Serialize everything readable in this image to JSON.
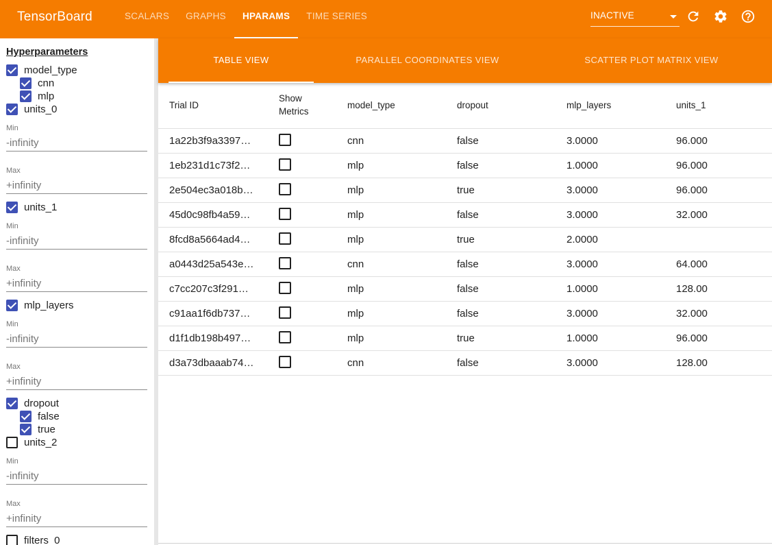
{
  "app": {
    "title": "TensorBoard",
    "nav_tabs": [
      {
        "label": "SCALARS"
      },
      {
        "label": "GRAPHS"
      },
      {
        "label": "HPARAMS"
      },
      {
        "label": "TIME SERIES"
      }
    ],
    "active_tab": "HPARAMS",
    "status_select": "INACTIVE",
    "icons": [
      "refresh-icon",
      "settings-icon",
      "help-icon"
    ],
    "accent_color": "#f57c00",
    "checkbox_color": "#3f51b5"
  },
  "sidebar": {
    "title": "Hyperparameters",
    "model_type": {
      "label": "model_type",
      "checked": true,
      "options": [
        {
          "label": "cnn",
          "checked": true
        },
        {
          "label": "mlp",
          "checked": true
        }
      ]
    },
    "units_0": {
      "label": "units_0",
      "checked": true,
      "min_label": "Min",
      "min_value": "-infinity",
      "max_label": "Max",
      "max_value": "+infinity"
    },
    "units_1": {
      "label": "units_1",
      "checked": true,
      "min_label": "Min",
      "min_value": "-infinity",
      "max_label": "Max",
      "max_value": "+infinity"
    },
    "mlp_layers": {
      "label": "mlp_layers",
      "checked": true,
      "min_label": "Min",
      "min_value": "-infinity",
      "max_label": "Max",
      "max_value": "+infinity"
    },
    "dropout": {
      "label": "dropout",
      "checked": true,
      "options": [
        {
          "label": "false",
          "checked": true
        },
        {
          "label": "true",
          "checked": true
        }
      ]
    },
    "units_2": {
      "label": "units_2",
      "checked": false,
      "min_label": "Min",
      "min_value": "-infinity",
      "max_label": "Max",
      "max_value": "+infinity"
    },
    "filters_0": {
      "label": "filters_0",
      "checked": false
    }
  },
  "view_tabs": [
    {
      "label": "TABLE VIEW"
    },
    {
      "label": "PARALLEL COORDINATES VIEW"
    },
    {
      "label": "SCATTER PLOT MATRIX VIEW"
    }
  ],
  "table": {
    "headers": {
      "trial_id": "Trial ID",
      "show_metrics_1": "Show",
      "show_metrics_2": "Metrics",
      "model_type": "model_type",
      "dropout": "dropout",
      "mlp_layers": "mlp_layers",
      "units_1": "units_1"
    },
    "rows": [
      {
        "trial_id": "1a22b3f9a3397…",
        "model_type": "cnn",
        "dropout": "false",
        "mlp_layers": "3.0000",
        "units_1": "96.000"
      },
      {
        "trial_id": "1eb231d1c73f2…",
        "model_type": "mlp",
        "dropout": "false",
        "mlp_layers": "1.0000",
        "units_1": "96.000"
      },
      {
        "trial_id": "2e504ec3a018b…",
        "model_type": "mlp",
        "dropout": "true",
        "mlp_layers": "3.0000",
        "units_1": "96.000"
      },
      {
        "trial_id": "45d0c98fb4a59…",
        "model_type": "mlp",
        "dropout": "false",
        "mlp_layers": "3.0000",
        "units_1": "32.000"
      },
      {
        "trial_id": "8fcd8a5664ad4…",
        "model_type": "mlp",
        "dropout": "true",
        "mlp_layers": "2.0000",
        "units_1": ""
      },
      {
        "trial_id": "a0443d25a543e…",
        "model_type": "cnn",
        "dropout": "false",
        "mlp_layers": "3.0000",
        "units_1": "64.000"
      },
      {
        "trial_id": "c7cc207c3f291…",
        "model_type": "mlp",
        "dropout": "false",
        "mlp_layers": "1.0000",
        "units_1": "128.00"
      },
      {
        "trial_id": "c91aa1f6db737…",
        "model_type": "mlp",
        "dropout": "false",
        "mlp_layers": "3.0000",
        "units_1": "32.000"
      },
      {
        "trial_id": "d1f1db198b497…",
        "model_type": "mlp",
        "dropout": "true",
        "mlp_layers": "1.0000",
        "units_1": "96.000"
      },
      {
        "trial_id": "d3a73dbaaab74…",
        "model_type": "cnn",
        "dropout": "false",
        "mlp_layers": "3.0000",
        "units_1": "128.00"
      }
    ]
  }
}
